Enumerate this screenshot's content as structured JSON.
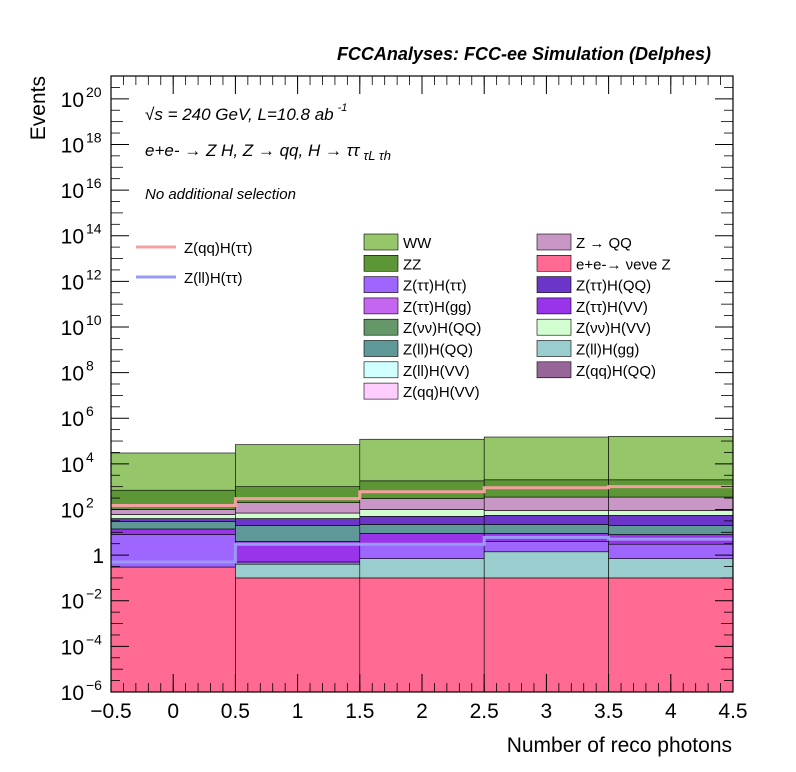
{
  "chart_data": {
    "type": "bar",
    "stacked": true,
    "title": "FCCAnalyses: FCC-ee Simulation (Delphes)",
    "xlabel": "Number of reco photons",
    "ylabel": "Events",
    "yscale": "log",
    "xlim": [
      -0.5,
      4.5
    ],
    "ylim": [
      1e-06,
      1e+21
    ],
    "x_ticks": [
      "−0.5",
      "0",
      "0.5",
      "1",
      "1.5",
      "2",
      "2.5",
      "3",
      "3.5",
      "4",
      "4.5"
    ],
    "y_ticks": [
      {
        "base": "10",
        "exp": "−6"
      },
      {
        "base": "10",
        "exp": "−4"
      },
      {
        "base": "10",
        "exp": "−2"
      },
      {
        "base": "1",
        "exp": ""
      },
      {
        "base": "10",
        "exp": "2"
      },
      {
        "base": "10",
        "exp": "4"
      },
      {
        "base": "10",
        "exp": "6"
      },
      {
        "base": "10",
        "exp": "8"
      },
      {
        "base": "10",
        "exp": "10"
      },
      {
        "base": "10",
        "exp": "12"
      },
      {
        "base": "10",
        "exp": "14"
      },
      {
        "base": "10",
        "exp": "16"
      },
      {
        "base": "10",
        "exp": "18"
      },
      {
        "base": "10",
        "exp": "20"
      }
    ],
    "annotations": {
      "energy_sqrt": "√s",
      "energy_rest": " = 240 GeV, L=10.8 ab",
      "energy_sup": "-1",
      "process_main": "e+e- → Z H, Z  → qq, H  → ττ",
      "process_tail": "τL τh",
      "selection": "No additional selection"
    },
    "bins": [
      0,
      1,
      2,
      3,
      4
    ],
    "stack_boundaries": [
      {
        "name": "e+e-→ νeνe Z",
        "values": [
          0.3,
          0.1,
          0.1,
          0.1,
          0.1
        ]
      },
      {
        "name": "Z(qq)H(QQ)",
        "values": [
          0,
          0.0003,
          0,
          0,
          0
        ]
      },
      {
        "name": "Z(ll)H(gg)",
        "values": [
          0.3,
          0.4,
          0.7,
          1.4,
          0.7
        ]
      },
      {
        "name": "Z(tt)H(tt)",
        "values": [
          8,
          0.5,
          3,
          4,
          3
        ]
      },
      {
        "name": "Z(tt)H(VV)",
        "values": [
          14,
          4,
          9,
          9,
          8
        ]
      },
      {
        "name": "Z(ll)H(QQ)",
        "values": [
          30,
          20,
          22,
          22,
          20
        ]
      },
      {
        "name": "Z(tt)H(QQ)",
        "values": [
          40,
          40,
          50,
          55,
          55
        ]
      },
      {
        "name": "Z(vv)H(VV)",
        "values": [
          60,
          70,
          100,
          90,
          90
        ]
      },
      {
        "name": "Z -> QQ",
        "values": [
          100,
          200,
          300,
          350,
          350
        ]
      },
      {
        "name": "ZZ",
        "values": [
          700,
          1000,
          1800,
          2000,
          2000
        ]
      },
      {
        "name": "WW",
        "values": [
          30000,
          70000,
          120000,
          150000,
          160000
        ]
      }
    ],
    "signal_lines": [
      {
        "name": "Z(qq)H(ττ)",
        "color": "#f4a0a0",
        "values": [
          150,
          300,
          600,
          900,
          1000
        ]
      },
      {
        "name": "Z(ll)H(ττ)",
        "color": "#9a9af4",
        "values": [
          0.5,
          3,
          3,
          6,
          5
        ]
      }
    ],
    "legend_lines": [
      {
        "label": "Z(qq)H(ττ)",
        "color": "#f4a0a0"
      },
      {
        "label": "Z(ll)H(ττ)",
        "color": "#9a9af4"
      }
    ],
    "legend_boxes": [
      {
        "label": "WW",
        "color": "#95c66a"
      },
      {
        "label": "Z → QQ",
        "color": "#c997c6"
      },
      {
        "label": "ZZ",
        "color": "#5d9636"
      },
      {
        "label": "e+e-→ νeνe Z",
        "color": "#ff6a93"
      },
      {
        "label": "Z(ττ)H(ττ)",
        "color": "#9e66ff"
      },
      {
        "label": "Z(ττ)H(QQ)",
        "color": "#6a35c8"
      },
      {
        "label": "Z(ττ)H(gg)",
        "color": "#c566f1"
      },
      {
        "label": "Z(ττ)H(VV)",
        "color": "#9934ea"
      },
      {
        "label": "Z(νν)H(QQ)",
        "color": "#659768"
      },
      {
        "label": "Z(νν)H(VV)",
        "color": "#d1fdd0"
      },
      {
        "label": "Z(ll)H(QQ)",
        "color": "#5e9897"
      },
      {
        "label": "Z(ll)H(gg)",
        "color": "#9acdcd"
      },
      {
        "label": "Z(ll)H(VV)",
        "color": "#d1feff"
      },
      {
        "label": "Z(qq)H(QQ)",
        "color": "#966699"
      },
      {
        "label": "Z(qq)H(VV)",
        "color": "#fecdfe"
      }
    ]
  }
}
